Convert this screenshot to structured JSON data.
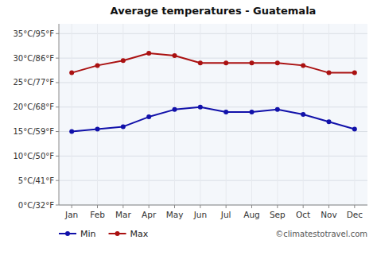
{
  "chart_data": {
    "type": "line",
    "title": "Average temperatures - Guatemala",
    "categories": [
      "Jan",
      "Feb",
      "Mar",
      "Apr",
      "May",
      "Jun",
      "Jul",
      "Aug",
      "Sep",
      "Oct",
      "Nov",
      "Dec"
    ],
    "series": [
      {
        "name": "Min",
        "color": "#1111aa",
        "marker": "circle",
        "values": [
          15,
          15.5,
          16,
          18,
          19.5,
          20,
          19,
          19,
          19.5,
          18.5,
          17,
          15.5
        ]
      },
      {
        "name": "Max",
        "color": "#aa1111",
        "marker": "circle",
        "values": [
          27,
          28.5,
          29.5,
          31,
          30.5,
          29,
          29,
          29,
          29,
          28.5,
          27,
          27
        ]
      }
    ],
    "ylim": [
      0,
      37
    ],
    "yticks": [
      {
        "value": 0,
        "label": "0°C/32°F"
      },
      {
        "value": 5,
        "label": "5°C/41°F"
      },
      {
        "value": 10,
        "label": "10°C/50°F"
      },
      {
        "value": 15,
        "label": "15°C/59°F"
      },
      {
        "value": 20,
        "label": "20°C/68°F"
      },
      {
        "value": 25,
        "label": "25°C/77°F"
      },
      {
        "value": 30,
        "label": "30°C/86°F"
      },
      {
        "value": 35,
        "label": "35°C/95°F"
      }
    ],
    "grid": true,
    "legend": "bottom",
    "annotations": [
      "©climatestotravel.com"
    ]
  }
}
